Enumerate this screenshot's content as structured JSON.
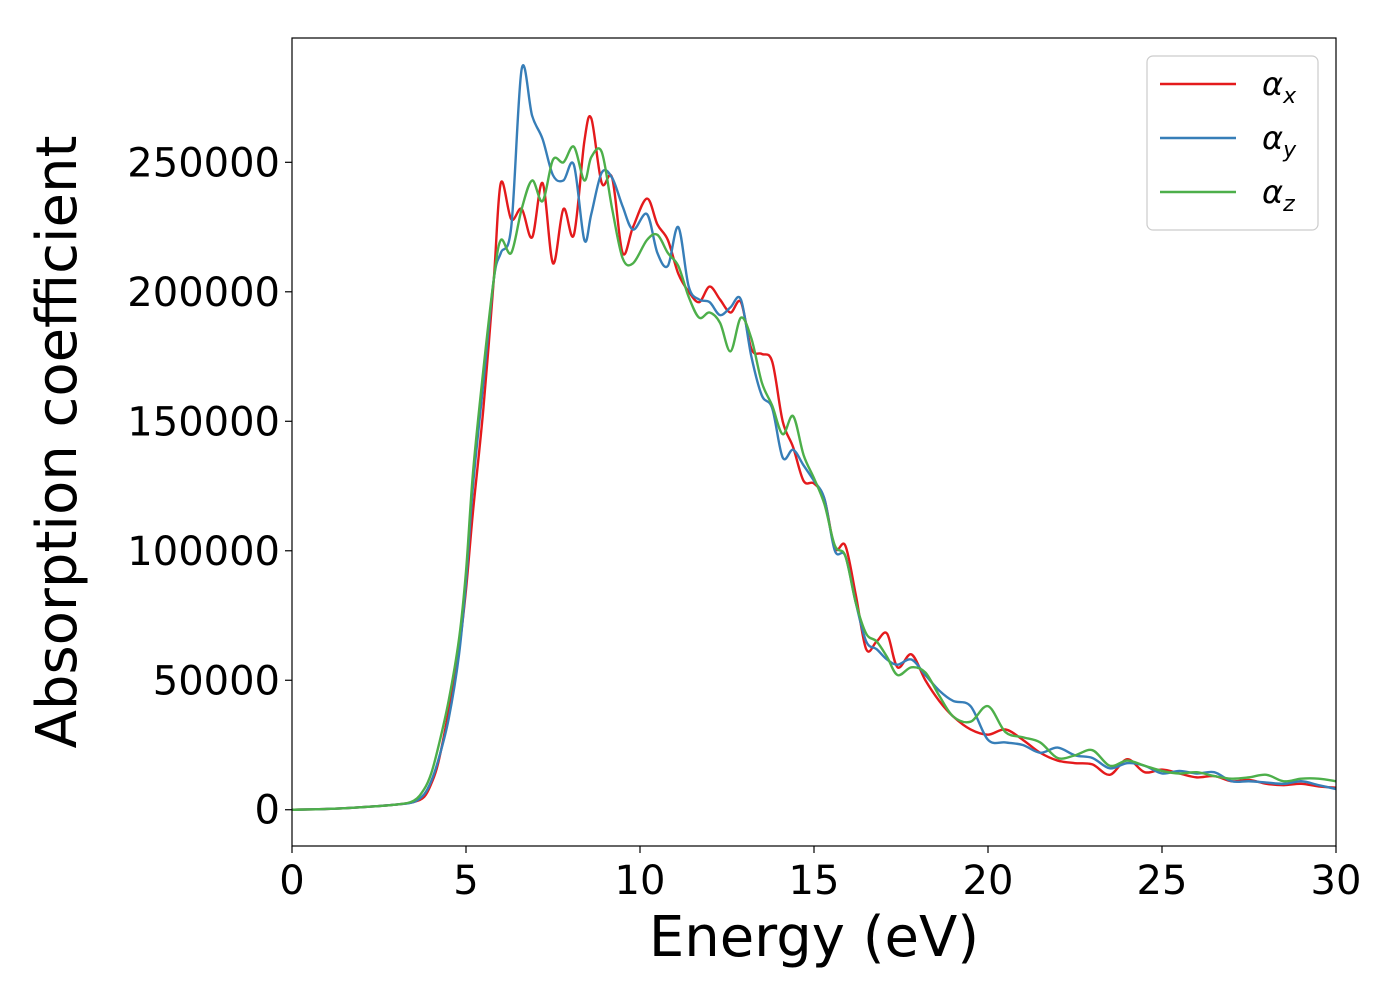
{
  "chart_data": {
    "type": "line",
    "title": "",
    "xlabel": "Energy (eV)",
    "ylabel": "Absorption coefficient",
    "xlim": [
      0,
      30
    ],
    "ylim": [
      -14000,
      298000
    ],
    "xticks": [
      0,
      5,
      10,
      15,
      20,
      25,
      30
    ],
    "xtick_labels": [
      "0",
      "5",
      "10",
      "15",
      "20",
      "25",
      "30"
    ],
    "yticks": [
      0,
      50000,
      100000,
      150000,
      200000,
      250000
    ],
    "ytick_labels": [
      "0",
      "50000",
      "100000",
      "150000",
      "200000",
      "250000"
    ],
    "grid": false,
    "legend_position": "top-right",
    "series": [
      {
        "name": "α_x",
        "symbol": "α",
        "subscript": "x",
        "color": "#e41a1c",
        "x": [
          0,
          1,
          2,
          3,
          3.5,
          3.8,
          4.0,
          4.2,
          4.5,
          4.8,
          5.0,
          5.2,
          5.5,
          5.8,
          6.0,
          6.3,
          6.6,
          6.9,
          7.2,
          7.5,
          7.8,
          8.1,
          8.4,
          8.6,
          8.9,
          9.2,
          9.5,
          9.8,
          10.2,
          10.5,
          10.8,
          11.1,
          11.4,
          11.7,
          12.0,
          12.3,
          12.6,
          12.9,
          13.2,
          13.5,
          13.8,
          14.1,
          14.4,
          14.7,
          15.0,
          15.3,
          15.6,
          15.9,
          16.2,
          16.5,
          16.8,
          17.1,
          17.4,
          17.8,
          18.2,
          18.6,
          19.0,
          19.5,
          20.0,
          20.5,
          21.0,
          21.5,
          22.0,
          22.5,
          23.0,
          23.5,
          24.0,
          24.5,
          25.0,
          25.5,
          26.0,
          26.5,
          27.0,
          27.5,
          28.0,
          28.5,
          29.0,
          29.5,
          30.0
        ],
        "y": [
          0,
          300,
          1000,
          2000,
          3000,
          5000,
          10000,
          18000,
          38000,
          62000,
          85000,
          115000,
          155000,
          205000,
          242000,
          228000,
          232000,
          221000,
          242000,
          211000,
          232000,
          222000,
          258000,
          267000,
          242000,
          244000,
          215000,
          225000,
          236000,
          226000,
          220000,
          207000,
          200000,
          196000,
          202000,
          197000,
          192000,
          196000,
          178000,
          176000,
          173000,
          150000,
          140000,
          127000,
          126000,
          120000,
          101000,
          102000,
          83000,
          62000,
          65000,
          68000,
          55000,
          60000,
          50000,
          42000,
          36000,
          31000,
          29000,
          31000,
          27000,
          22000,
          19000,
          18000,
          17500,
          13500,
          19500,
          14500,
          15500,
          14000,
          12500,
          13000,
          11000,
          11500,
          10000,
          9500,
          10000,
          9000,
          8500
        ]
      },
      {
        "name": "α_y",
        "symbol": "α",
        "subscript": "y",
        "color": "#377eb8",
        "x": [
          0,
          1,
          2,
          3,
          3.5,
          3.8,
          4.0,
          4.2,
          4.5,
          4.8,
          5.0,
          5.2,
          5.5,
          5.8,
          6.0,
          6.3,
          6.6,
          6.9,
          7.2,
          7.5,
          7.8,
          8.1,
          8.4,
          8.6,
          8.9,
          9.2,
          9.5,
          9.8,
          10.2,
          10.5,
          10.8,
          11.1,
          11.4,
          11.7,
          12.0,
          12.3,
          12.6,
          12.9,
          13.2,
          13.5,
          13.8,
          14.1,
          14.4,
          14.7,
          15.0,
          15.3,
          15.6,
          15.9,
          16.2,
          16.5,
          16.8,
          17.1,
          17.4,
          17.8,
          18.2,
          18.6,
          19.0,
          19.5,
          20.0,
          20.5,
          21.0,
          21.5,
          22.0,
          22.5,
          23.0,
          23.5,
          24.0,
          24.5,
          25.0,
          25.5,
          26.0,
          26.5,
          27.0,
          27.5,
          28.0,
          28.5,
          29.0,
          29.5,
          30.0
        ],
        "y": [
          0,
          300,
          1000,
          2000,
          3000,
          6000,
          11000,
          19000,
          35000,
          60000,
          88000,
          125000,
          165000,
          205000,
          215000,
          225000,
          286000,
          268000,
          259000,
          245000,
          243000,
          249000,
          220000,
          230000,
          246000,
          244000,
          233000,
          224000,
          230000,
          215000,
          210000,
          225000,
          202000,
          197000,
          196000,
          191000,
          194000,
          197000,
          175000,
          160000,
          155000,
          136000,
          139000,
          133000,
          127000,
          120000,
          100000,
          98000,
          80000,
          65000,
          62000,
          58000,
          56000,
          58000,
          52000,
          46000,
          42000,
          40000,
          27000,
          26000,
          25000,
          22000,
          24000,
          21000,
          20000,
          16000,
          18000,
          17000,
          14000,
          15000,
          14000,
          14500,
          11000,
          11000,
          10500,
          10000,
          11000,
          9500,
          8000
        ]
      },
      {
        "name": "α_z",
        "symbol": "α",
        "subscript": "z",
        "color": "#4daf4a",
        "x": [
          0,
          1,
          2,
          3,
          3.5,
          3.8,
          4.0,
          4.2,
          4.5,
          4.8,
          5.0,
          5.2,
          5.5,
          5.8,
          6.0,
          6.3,
          6.6,
          6.9,
          7.2,
          7.5,
          7.8,
          8.1,
          8.4,
          8.6,
          8.9,
          9.2,
          9.5,
          9.8,
          10.2,
          10.5,
          10.8,
          11.1,
          11.4,
          11.7,
          12.0,
          12.3,
          12.6,
          12.9,
          13.2,
          13.5,
          13.8,
          14.1,
          14.4,
          14.7,
          15.0,
          15.3,
          15.6,
          15.9,
          16.2,
          16.5,
          16.8,
          17.1,
          17.4,
          17.8,
          18.2,
          18.6,
          19.0,
          19.5,
          20.0,
          20.5,
          21.0,
          21.5,
          22.0,
          22.5,
          23.0,
          23.5,
          24.0,
          24.5,
          25.0,
          25.5,
          26.0,
          26.5,
          27.0,
          27.5,
          28.0,
          28.5,
          29.0,
          29.5,
          30.0
        ],
        "y": [
          0,
          300,
          1000,
          2000,
          3500,
          8000,
          14000,
          24000,
          42000,
          66000,
          92000,
          130000,
          170000,
          205000,
          220000,
          215000,
          232000,
          243000,
          235000,
          251000,
          250000,
          256000,
          243000,
          252000,
          254000,
          232000,
          213000,
          211000,
          220000,
          222000,
          215000,
          210000,
          198000,
          190000,
          192000,
          188000,
          177000,
          190000,
          182000,
          165000,
          156000,
          145000,
          152000,
          137000,
          128000,
          118000,
          102000,
          98000,
          80000,
          68000,
          65000,
          59000,
          52000,
          55000,
          53000,
          44000,
          36000,
          34000,
          40000,
          30000,
          28000,
          26000,
          20000,
          21000,
          23000,
          17000,
          19000,
          17000,
          15000,
          14000,
          14500,
          13000,
          12000,
          12500,
          13500,
          11000,
          12000,
          12000,
          11000
        ]
      }
    ]
  }
}
